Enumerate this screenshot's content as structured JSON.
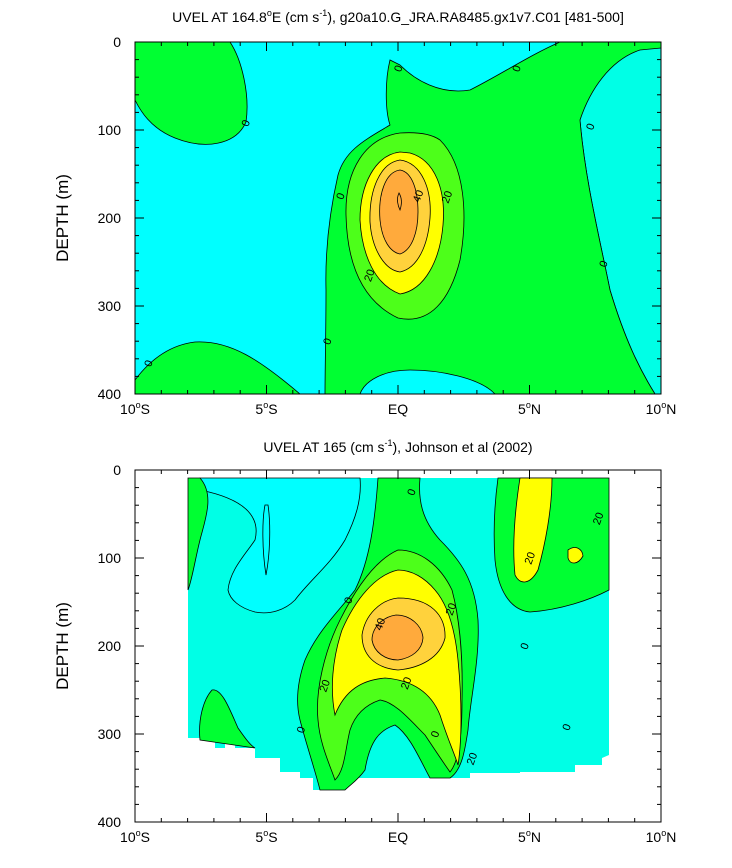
{
  "chart_data": [
    {
      "type": "heatmap",
      "subtype": "filled-contour",
      "title_prefix": "UVEL AT 164.8",
      "title_deg": "o",
      "title_mid": "E (cm s",
      "title_sup": "-1",
      "title_suffix": "), g20a10.G_JRA.RA8485.gx1v7.C01 [481-500]",
      "ylabel": "DEPTH (m)",
      "xlabel": "",
      "xlim": [
        -10,
        10
      ],
      "ylim": [
        400,
        0
      ],
      "x_ticks": [
        -10,
        -5,
        0,
        5,
        10
      ],
      "x_tick_labels": [
        {
          "num": "10",
          "deg": "o",
          "hemi": "S"
        },
        {
          "num": "5",
          "deg": "o",
          "hemi": "S"
        },
        {
          "num": "EQ",
          "deg": "",
          "hemi": ""
        },
        {
          "num": "5",
          "deg": "o",
          "hemi": "N"
        },
        {
          "num": "10",
          "deg": "o",
          "hemi": "N"
        }
      ],
      "y_ticks": [
        0,
        100,
        200,
        300,
        400
      ],
      "y_tick_labels": [
        "0",
        "100",
        "200",
        "300",
        "400"
      ],
      "contour_levels": [
        0,
        10,
        20,
        30,
        40
      ],
      "contour_labels": [
        {
          "text": "0",
          "x": 0.0,
          "depth": 30
        },
        {
          "text": "0",
          "x": 4.5,
          "depth": 30
        },
        {
          "text": "0",
          "x": -5.8,
          "depth": 92
        },
        {
          "text": "0",
          "x": 7.3,
          "depth": 96
        },
        {
          "text": "0",
          "x": -2.2,
          "depth": 175
        },
        {
          "text": "40",
          "x": 0.75,
          "depth": 175
        },
        {
          "text": "20",
          "x": 1.85,
          "depth": 176
        },
        {
          "text": "0",
          "x": 7.8,
          "depth": 252
        },
        {
          "text": "20",
          "x": -1.1,
          "depth": 265
        },
        {
          "text": "0",
          "x": -2.7,
          "depth": 340
        },
        {
          "text": "0",
          "x": -9.5,
          "depth": 365
        }
      ],
      "features": [
        {
          "name": "core-max",
          "x": 0.0,
          "depth": 185,
          "approx_value": 45
        }
      ]
    },
    {
      "type": "heatmap",
      "subtype": "filled-contour",
      "title_prefix": "UVEL AT 165 (cm s",
      "title_sup": "-1",
      "title_suffix": "), Johnson et al (2002)",
      "ylabel": "DEPTH (m)",
      "xlabel": "",
      "xlim": [
        -10,
        10
      ],
      "ylim": [
        400,
        0
      ],
      "x_ticks": [
        -10,
        -5,
        0,
        5,
        10
      ],
      "x_tick_labels": [
        {
          "num": "10",
          "deg": "o",
          "hemi": "S"
        },
        {
          "num": "5",
          "deg": "o",
          "hemi": "S"
        },
        {
          "num": "EQ",
          "deg": "",
          "hemi": ""
        },
        {
          "num": "5",
          "deg": "o",
          "hemi": "N"
        },
        {
          "num": "10",
          "deg": "o",
          "hemi": "N"
        }
      ],
      "y_ticks": [
        0,
        100,
        200,
        300,
        400
      ],
      "y_tick_labels": [
        "0",
        "100",
        "200",
        "300",
        "400"
      ],
      "contour_levels": [
        0,
        10,
        20,
        30,
        40
      ],
      "contour_labels": [
        {
          "text": "0",
          "x": 0.5,
          "depth": 25
        },
        {
          "text": "20",
          "x": 7.6,
          "depth": 55
        },
        {
          "text": "20",
          "x": 5.0,
          "depth": 100
        },
        {
          "text": "0",
          "x": -1.9,
          "depth": 148
        },
        {
          "text": "40",
          "x": -0.7,
          "depth": 175
        },
        {
          "text": "20",
          "x": 2.0,
          "depth": 158
        },
        {
          "text": "0",
          "x": 4.8,
          "depth": 200
        },
        {
          "text": "20",
          "x": -2.8,
          "depth": 245
        },
        {
          "text": "20",
          "x": 0.3,
          "depth": 242
        },
        {
          "text": "0",
          "x": -3.7,
          "depth": 295
        },
        {
          "text": "0",
          "x": 6.4,
          "depth": 292
        },
        {
          "text": "0",
          "x": 1.4,
          "depth": 300
        },
        {
          "text": "20",
          "x": 2.8,
          "depth": 328
        }
      ],
      "data_extent": {
        "x_min": -8,
        "x_max": 8,
        "depth_min": 0,
        "depth_max": 365
      },
      "features": [
        {
          "name": "core-max",
          "x": 0.0,
          "depth": 190,
          "approx_value": 45
        }
      ]
    }
  ]
}
